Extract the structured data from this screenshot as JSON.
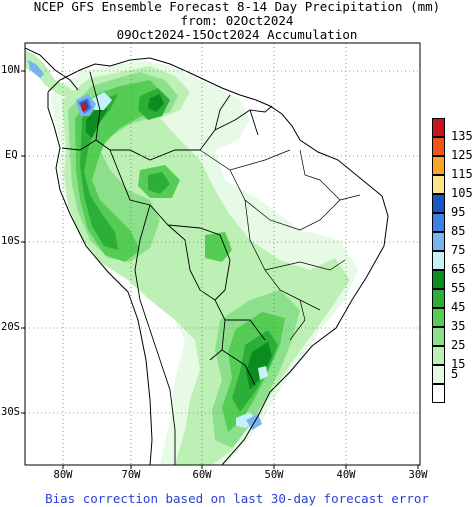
{
  "title": {
    "line1": "NCEP GFS Ensemble Forecast 8-14 Day Precipitation (mm)",
    "line2": "from: 02Oct2024",
    "line3": "09Oct2024-15Oct2024 Accumulation"
  },
  "latitude_labels": [
    "10N",
    "EQ",
    "10S",
    "20S",
    "30S"
  ],
  "longitude_labels": [
    "80W",
    "70W",
    "60W",
    "50W",
    "40W",
    "30W"
  ],
  "legend": [
    {
      "label": "135",
      "color": "#c8141e"
    },
    {
      "label": "125",
      "color": "#f05514"
    },
    {
      "label": "115",
      "color": "#fca528"
    },
    {
      "label": "105",
      "color": "#fbe68c"
    },
    {
      "label": "95",
      "color": "#1a55c8"
    },
    {
      "label": "85",
      "color": "#3c82e6"
    },
    {
      "label": "75",
      "color": "#78b4f0"
    },
    {
      "label": "65",
      "color": "#c8f0f8"
    },
    {
      "label": "55",
      "color": "#0c8c1e"
    },
    {
      "label": "45",
      "color": "#2dae38"
    },
    {
      "label": "35",
      "color": "#55cd55"
    },
    {
      "label": "25",
      "color": "#8ce08c"
    },
    {
      "label": "15",
      "color": "#bcf0b4"
    },
    {
      "label": "5",
      "color": "#e6fae6"
    },
    {
      "label": "",
      "color": "#ffffff"
    }
  ],
  "footer": "Bias correction based on last 30-day forecast error"
}
